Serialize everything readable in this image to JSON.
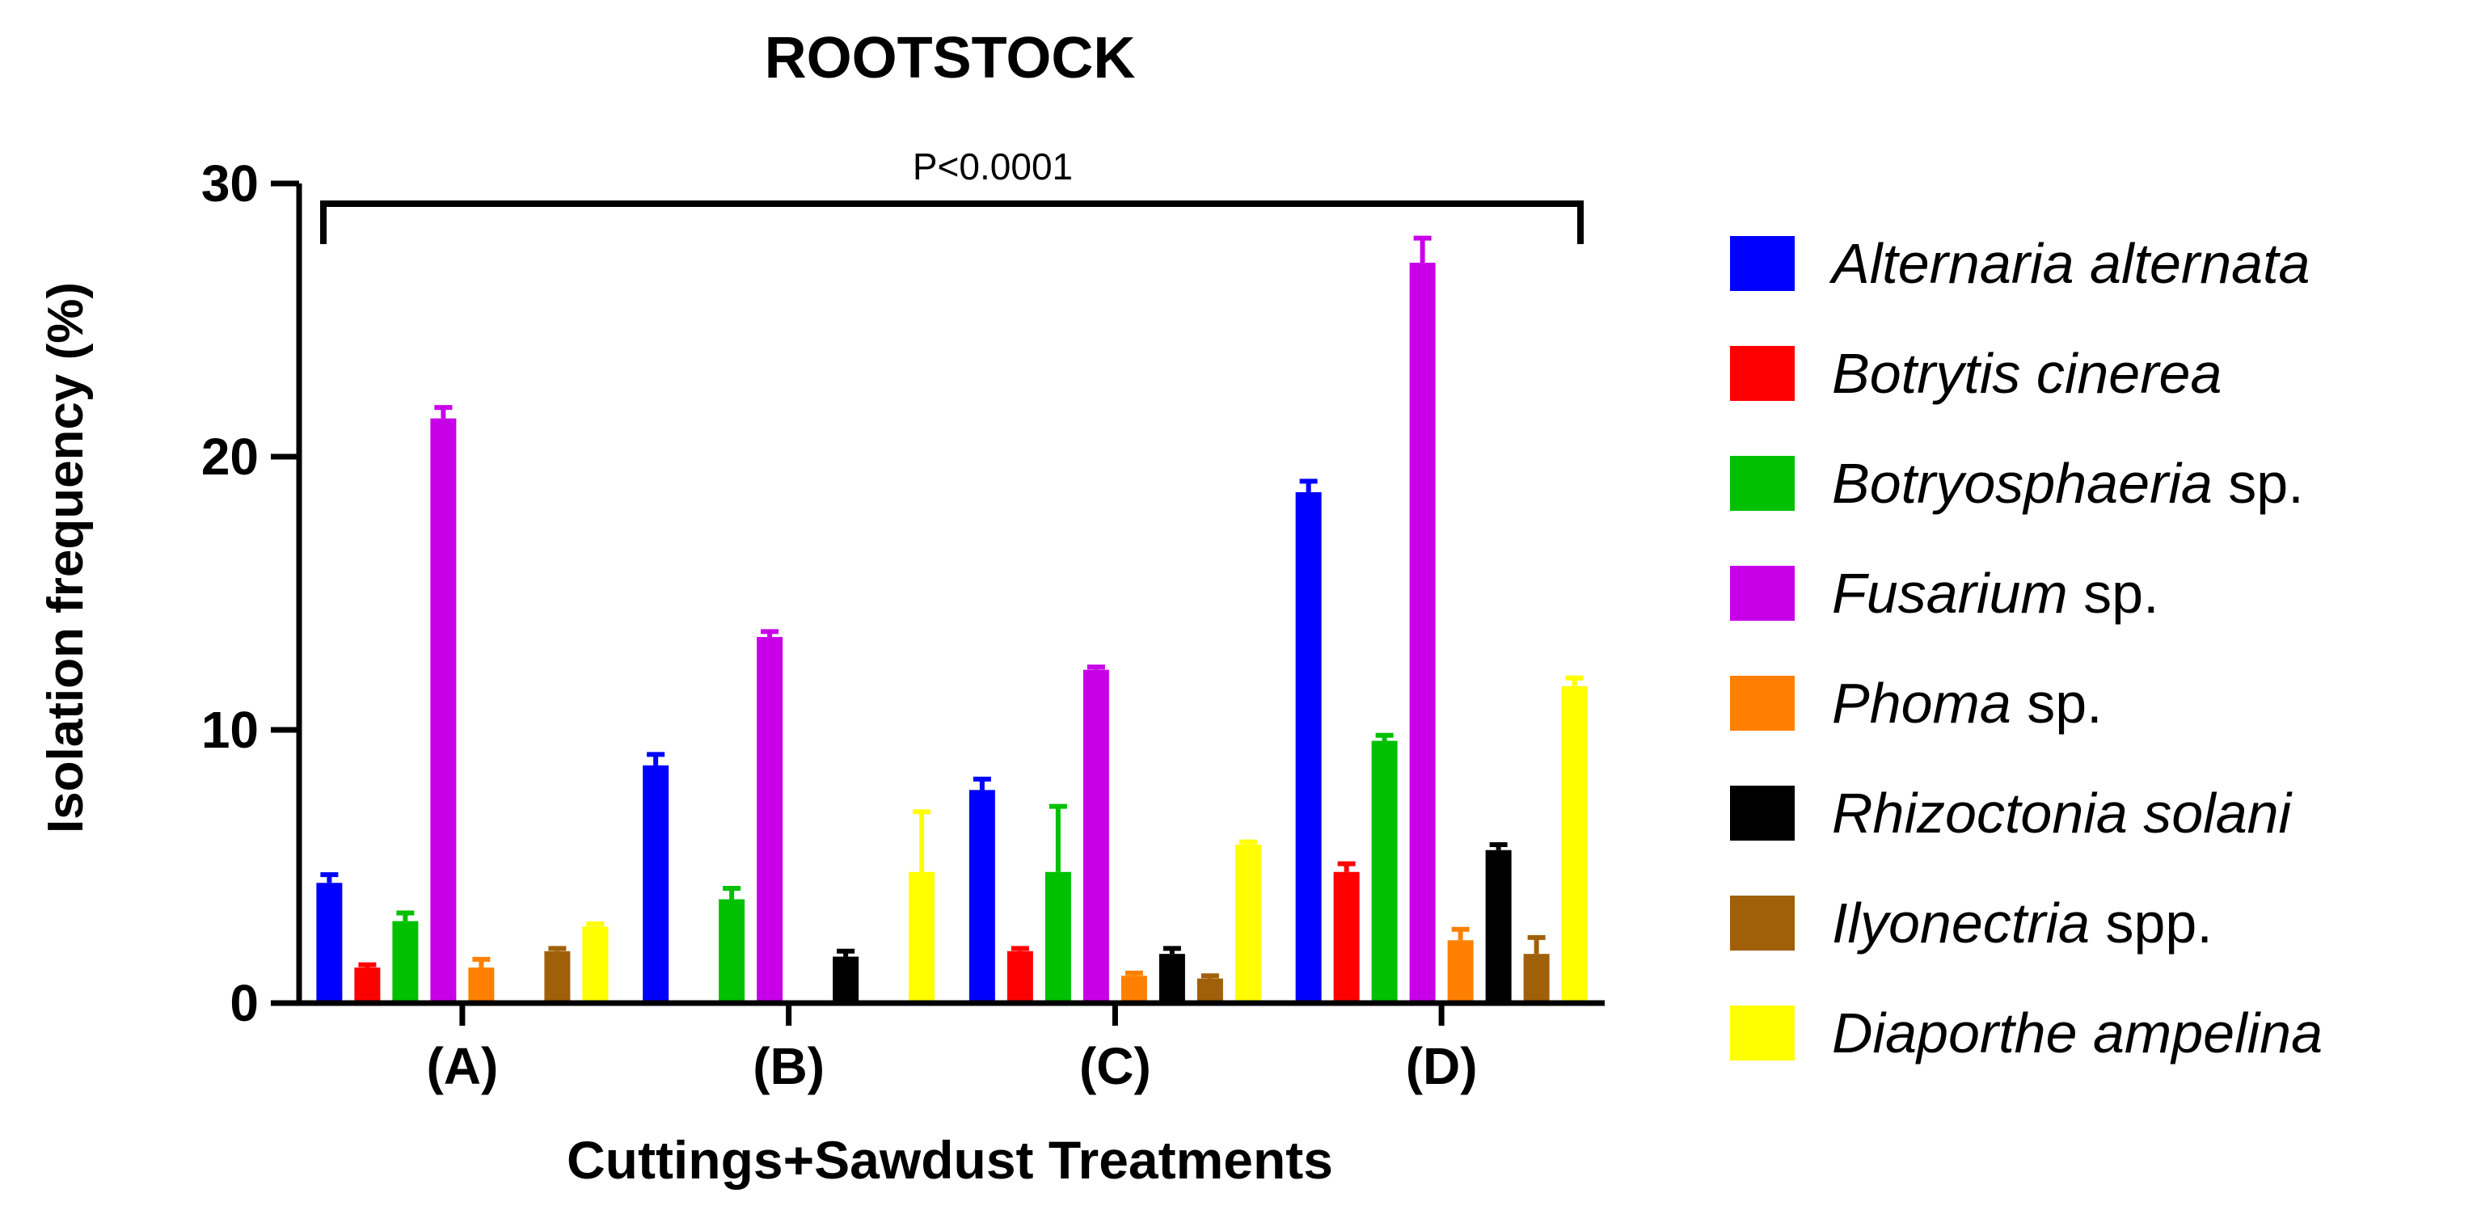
{
  "chart_data": {
    "type": "bar",
    "title": "ROOTSTOCK",
    "xlabel": "Cuttings+Sawdust Treatments",
    "ylabel": "Isolation frequency (%)",
    "ylim": [
      0,
      30
    ],
    "yticks": [
      0,
      10,
      20,
      30
    ],
    "categories": [
      "(A)",
      "(B)",
      "(C)",
      "(D)"
    ],
    "annotation": "P<0.0001",
    "legend_position": "right",
    "grid": false,
    "series": [
      {
        "name": "Alternaria alternata",
        "name_italic": "Alternaria alternata",
        "name_suffix": "",
        "color": "#0000ff",
        "values": [
          4.4,
          8.7,
          7.8,
          18.7
        ],
        "errors": [
          0.3,
          0.4,
          0.4,
          0.4
        ]
      },
      {
        "name": "Botrytis cinerea",
        "name_italic": "Botrytis cinerea",
        "name_suffix": "",
        "color": "#ff0000",
        "values": [
          1.3,
          0,
          1.9,
          4.8
        ],
        "errors": [
          0.1,
          0,
          0.1,
          0.3
        ]
      },
      {
        "name": "Botryosphaeria sp.",
        "name_italic": "Botryosphaeria",
        "name_suffix": " sp.",
        "color": "#00c000",
        "values": [
          3.0,
          3.8,
          4.8,
          9.6
        ],
        "errors": [
          0.3,
          0.4,
          2.4,
          0.2
        ]
      },
      {
        "name": "Fusarium sp.",
        "name_italic": "Fusarium",
        "name_suffix": " sp.",
        "color": "#c800e8",
        "values": [
          21.4,
          13.4,
          12.2,
          27.1
        ],
        "errors": [
          0.4,
          0.2,
          0.1,
          0.9
        ]
      },
      {
        "name": "Phoma sp.",
        "name_italic": "Phoma",
        "name_suffix": " sp.",
        "color": "#ff8000",
        "values": [
          1.3,
          0,
          1.0,
          2.3
        ],
        "errors": [
          0.3,
          0,
          0.1,
          0.4
        ]
      },
      {
        "name": "Rhizoctonia solani",
        "name_italic": "Rhizoctonia solani",
        "name_suffix": "",
        "color": "#000000",
        "values": [
          0,
          1.7,
          1.8,
          5.6
        ],
        "errors": [
          0,
          0.2,
          0.2,
          0.2
        ]
      },
      {
        "name": "Ilyonectria spp.",
        "name_italic": "Ilyonectria",
        "name_suffix": " spp.",
        "color": "#a0600a",
        "values": [
          1.9,
          0,
          0.9,
          1.8
        ],
        "errors": [
          0.1,
          0,
          0.1,
          0.6
        ]
      },
      {
        "name": "Diaporthe ampelina",
        "name_italic": "Diaporthe ampelina",
        "name_suffix": "",
        "color": "#ffff00",
        "values": [
          2.8,
          4.8,
          5.8,
          11.6
        ],
        "errors": [
          0.1,
          2.2,
          0.1,
          0.3
        ]
      }
    ]
  }
}
